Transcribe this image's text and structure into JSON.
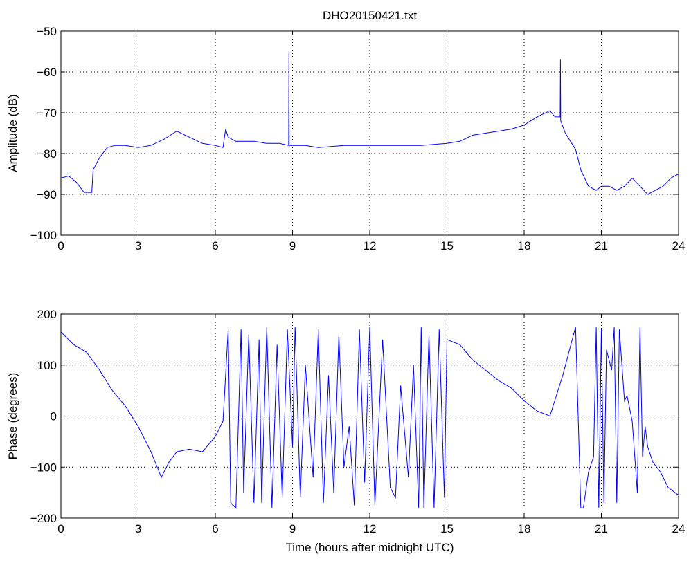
{
  "chart_data": [
    {
      "type": "line",
      "title": "DHO20150421.txt",
      "xlabel": "",
      "ylabel": "Amplitude (dB)",
      "xlim": [
        0,
        24
      ],
      "ylim": [
        -100,
        -50
      ],
      "xticks": [
        0,
        3,
        6,
        9,
        12,
        15,
        18,
        21,
        24
      ],
      "xtick_labels": [
        "0",
        "3",
        "6",
        "9",
        "12",
        "15",
        "18",
        "21",
        "24"
      ],
      "yticks": [
        -100,
        -90,
        -80,
        -70,
        -60,
        -50
      ],
      "ytick_labels": [
        "−100",
        "−90",
        "−80",
        "−70",
        "−60",
        "−50"
      ],
      "grid": true,
      "series_color": "#0000ff",
      "x": [
        0,
        0.3,
        0.6,
        0.9,
        1.2,
        1.25,
        1.5,
        1.8,
        2.1,
        2.5,
        3.0,
        3.5,
        4.0,
        4.5,
        5.0,
        5.5,
        6.0,
        6.3,
        6.4,
        6.5,
        6.8,
        7.5,
        8.0,
        8.5,
        8.85,
        8.86,
        8.87,
        8.9,
        9.5,
        10.0,
        11.0,
        12.0,
        13.0,
        14.0,
        15.0,
        15.5,
        16.0,
        16.5,
        17.0,
        17.5,
        18.0,
        18.5,
        19.0,
        19.2,
        19.4,
        19.41,
        19.42,
        19.6,
        19.8,
        20.0,
        20.2,
        20.5,
        20.8,
        21.0,
        21.3,
        21.6,
        21.9,
        22.2,
        22.5,
        22.8,
        23.1,
        23.4,
        23.7,
        24.0
      ],
      "values": [
        -86,
        -85.5,
        -87,
        -89.5,
        -89.5,
        -84,
        -81,
        -78.5,
        -78,
        -78,
        -78.5,
        -78,
        -76.5,
        -74.5,
        -76,
        -77.5,
        -78,
        -78.5,
        -74,
        -76,
        -77,
        -77,
        -77.5,
        -77.5,
        -78,
        -55,
        -78,
        -78,
        -78,
        -78.5,
        -78,
        -78,
        -78,
        -78,
        -77.5,
        -77,
        -75.5,
        -75,
        -74.5,
        -74,
        -73,
        -71,
        -69.5,
        -71,
        -71,
        -57,
        -72,
        -75,
        -77,
        -79,
        -84,
        -88,
        -89,
        -88,
        -88,
        -89,
        -88,
        -86,
        -88,
        -90,
        -89,
        -88,
        -86,
        -85
      ]
    },
    {
      "type": "line",
      "title": "",
      "xlabel": "Time (hours after midnight UTC)",
      "ylabel": "Phase (degrees)",
      "xlim": [
        0,
        24
      ],
      "ylim": [
        -200,
        200
      ],
      "xticks": [
        0,
        3,
        6,
        9,
        12,
        15,
        18,
        21,
        24
      ],
      "xtick_labels": [
        "0",
        "3",
        "6",
        "9",
        "12",
        "15",
        "18",
        "21",
        "24"
      ],
      "yticks": [
        -200,
        -100,
        0,
        100,
        200
      ],
      "ytick_labels": [
        "−200",
        "−100",
        "0",
        "100",
        "200"
      ],
      "grid": true,
      "series_color": "#0000ff",
      "x": [
        0,
        0.5,
        1.0,
        1.5,
        2.0,
        2.5,
        3.0,
        3.5,
        3.9,
        4.2,
        4.5,
        5.0,
        5.5,
        6.0,
        6.3,
        6.5,
        6.6,
        6.8,
        7.0,
        7.1,
        7.3,
        7.5,
        7.7,
        7.8,
        8.0,
        8.2,
        8.4,
        8.6,
        8.8,
        9.0,
        9.1,
        9.3,
        9.5,
        9.8,
        10.0,
        10.2,
        10.4,
        10.6,
        10.8,
        11.0,
        11.2,
        11.4,
        11.6,
        11.8,
        12.0,
        12.2,
        12.5,
        12.8,
        13.0,
        13.2,
        13.5,
        13.7,
        13.9,
        14.0,
        14.1,
        14.3,
        14.5,
        14.7,
        14.9,
        15.0,
        15.5,
        16.0,
        16.5,
        17.0,
        17.5,
        18.0,
        18.5,
        19.0,
        19.5,
        20.0,
        20.2,
        20.3,
        20.5,
        20.7,
        20.8,
        20.9,
        21.0,
        21.1,
        21.2,
        21.4,
        21.5,
        21.6,
        21.7,
        21.9,
        22.0,
        22.2,
        22.4,
        22.5,
        22.6,
        22.7,
        22.8,
        23.0,
        23.3,
        23.6,
        24.0
      ],
      "values": [
        165,
        140,
        125,
        90,
        50,
        20,
        -20,
        -70,
        -120,
        -90,
        -70,
        -65,
        -70,
        -40,
        -10,
        170,
        -170,
        -180,
        170,
        -150,
        160,
        -170,
        150,
        -170,
        175,
        -180,
        140,
        -160,
        170,
        -60,
        175,
        -160,
        100,
        -120,
        170,
        -170,
        80,
        -150,
        160,
        -100,
        -20,
        -175,
        170,
        -130,
        175,
        -175,
        150,
        -140,
        -160,
        60,
        -120,
        100,
        -180,
        175,
        -180,
        160,
        -180,
        170,
        -160,
        150,
        140,
        110,
        90,
        70,
        55,
        30,
        10,
        0,
        80,
        175,
        -180,
        -180,
        -110,
        -80,
        175,
        -180,
        170,
        -170,
        130,
        90,
        175,
        -170,
        170,
        30,
        40,
        -10,
        -150,
        175,
        -80,
        -20,
        -60,
        -90,
        -110,
        -140,
        -155
      ]
    }
  ]
}
